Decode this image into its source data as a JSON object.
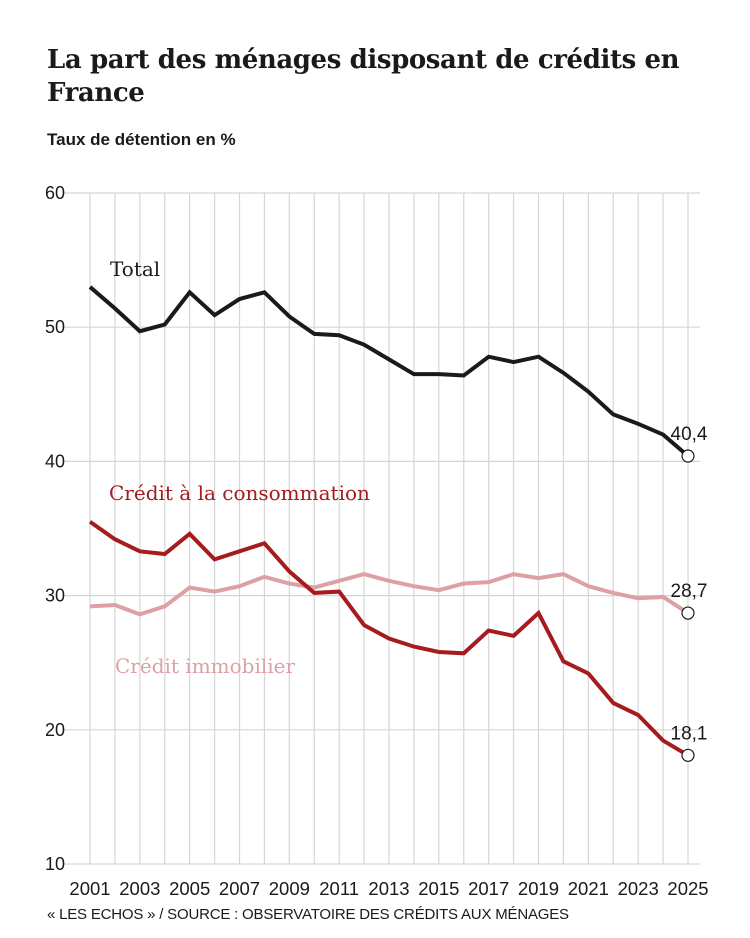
{
  "header": {
    "title": "La part des ménages disposant de crédits en France",
    "subtitle": "Taux de détention en %"
  },
  "footer": {
    "source": "« LES ECHOS » / SOURCE : OBSERVATOIRE DES CRÉDITS AUX MÉNAGES"
  },
  "chart_data": {
    "type": "line",
    "title": "La part des ménages disposant de crédits en France",
    "subtitle": "Taux de détention en %",
    "xlabel": "",
    "ylabel": "Taux de détention en %",
    "x": [
      2001,
      2002,
      2003,
      2004,
      2005,
      2006,
      2007,
      2008,
      2009,
      2010,
      2011,
      2012,
      2013,
      2014,
      2015,
      2016,
      2017,
      2018,
      2019,
      2020,
      2021,
      2022,
      2023,
      2024,
      2025
    ],
    "x_ticks": [
      "2001",
      "2003",
      "2005",
      "2007",
      "2009",
      "2011",
      "2013",
      "2015",
      "2017",
      "2019",
      "2021",
      "2023",
      "2025"
    ],
    "y_ticks": [
      "10",
      "20",
      "30",
      "40",
      "50",
      "60"
    ],
    "xlim": [
      2001,
      2025
    ],
    "ylim": [
      10,
      60
    ],
    "grid": true,
    "legend": "inline labels",
    "series": [
      {
        "name": "Total",
        "color": "#1a1a1a",
        "values": [
          53.0,
          51.4,
          49.7,
          50.2,
          52.6,
          50.9,
          52.1,
          52.6,
          50.8,
          49.5,
          49.4,
          48.7,
          47.6,
          46.5,
          46.5,
          46.4,
          47.8,
          47.4,
          47.8,
          46.6,
          45.2,
          43.5,
          42.8,
          42.0,
          40.4
        ],
        "end_label": "40,4"
      },
      {
        "name": "Crédit à la consommation",
        "color": "#a51b1e",
        "values": [
          35.5,
          34.2,
          33.3,
          33.1,
          34.6,
          32.7,
          33.3,
          33.9,
          31.8,
          30.2,
          30.3,
          27.8,
          26.8,
          26.2,
          25.8,
          25.7,
          27.4,
          27.0,
          28.7,
          25.1,
          24.2,
          22.0,
          21.1,
          19.2,
          18.1
        ],
        "end_label": "18,1"
      },
      {
        "name": "Crédit immobilier",
        "color": "#dda0a4",
        "values": [
          29.2,
          29.3,
          28.6,
          29.2,
          30.6,
          30.3,
          30.7,
          31.4,
          30.9,
          30.6,
          31.1,
          31.6,
          31.1,
          30.7,
          30.4,
          30.9,
          31.0,
          31.6,
          31.3,
          31.6,
          30.7,
          30.2,
          29.8,
          29.9,
          28.7
        ],
        "end_label": "28,7"
      }
    ]
  }
}
